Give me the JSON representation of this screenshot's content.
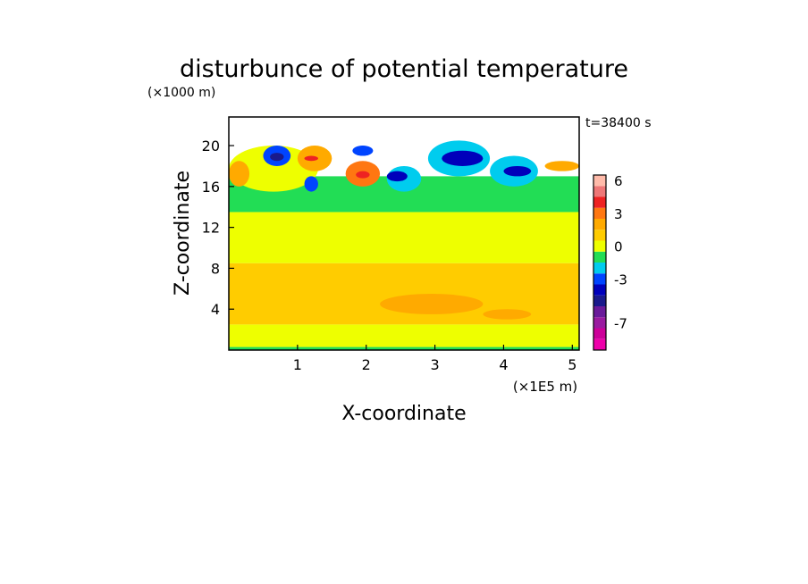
{
  "chart_data": {
    "type": "heatmap",
    "title": "disturbunce of potential temperature",
    "time_label": "t=38400 s",
    "xlabel": "X-coordinate",
    "ylabel": "Z-coordinate",
    "x_unit": "(×1E5 m)",
    "y_unit": "(×1000 m)",
    "x_ticks": [
      "1",
      "2",
      "3",
      "4",
      "5"
    ],
    "y_ticks": [
      "20",
      "16",
      "12",
      "8",
      "4"
    ],
    "xlim": [
      0,
      5.1
    ],
    "ylim": [
      0,
      22.8
    ],
    "colorbar": {
      "tick_labels": [
        "6",
        "3",
        "0",
        "-3",
        "-7"
      ],
      "levels": [
        {
          "min": -9,
          "max": -8,
          "color": "#ee00aa"
        },
        {
          "min": -8,
          "max": -7,
          "color": "#cc0099"
        },
        {
          "min": -7,
          "max": -6,
          "color": "#9a1aa0"
        },
        {
          "min": -6,
          "max": -5,
          "color": "#6a1a9a"
        },
        {
          "min": -5,
          "max": -4,
          "color": "#1a1a8c"
        },
        {
          "min": -4,
          "max": -3,
          "color": "#0000bb"
        },
        {
          "min": -3,
          "max": -2,
          "color": "#0044ff"
        },
        {
          "min": -2,
          "max": -1,
          "color": "#00ccee"
        },
        {
          "min": -1,
          "max": 0,
          "color": "#22dd55"
        },
        {
          "min": 0,
          "max": 1,
          "color": "#eeff00"
        },
        {
          "min": 1,
          "max": 2,
          "color": "#ffcc00"
        },
        {
          "min": 2,
          "max": 3,
          "color": "#ffaa00"
        },
        {
          "min": 3,
          "max": 4,
          "color": "#ff7711"
        },
        {
          "min": 4,
          "max": 5,
          "color": "#ee2222"
        },
        {
          "min": 5,
          "max": 6,
          "color": "#ee7777"
        },
        {
          "min": 6,
          "max": 7,
          "color": "#ffbbaa"
        }
      ]
    },
    "regions": [
      {
        "x0": 0.0,
        "x1": 5.1,
        "z0": 0.0,
        "z1": 0.3,
        "value": -0.5
      },
      {
        "x0": 0.0,
        "x1": 5.1,
        "z0": 0.3,
        "z1": 2.5,
        "value": 0.5
      },
      {
        "x0": 0.0,
        "x1": 5.1,
        "z0": 2.5,
        "z1": 8.5,
        "value": 1.5
      },
      {
        "x0": 0.3,
        "x1": 4.5,
        "z0": 3.0,
        "z1": 8.0,
        "value": 1.5
      },
      {
        "x0": 2.2,
        "x1": 3.7,
        "z0": 3.5,
        "z1": 5.5,
        "value": 2.5
      },
      {
        "x0": 3.7,
        "x1": 4.4,
        "z0": 3.0,
        "z1": 4.0,
        "value": 2.5
      },
      {
        "x0": 0.0,
        "x1": 5.1,
        "z0": 8.5,
        "z1": 13.5,
        "value": 0.5
      },
      {
        "x0": 0.0,
        "x1": 5.1,
        "z0": 13.5,
        "z1": 17.0,
        "value": -0.5
      },
      {
        "x0": 0.0,
        "x1": 1.3,
        "z0": 15.5,
        "z1": 20.0,
        "value": 0.5
      },
      {
        "x0": 0.0,
        "x1": 0.3,
        "z0": 16.0,
        "z1": 18.5,
        "value": 2.5
      },
      {
        "x0": 0.5,
        "x1": 0.9,
        "z0": 18.0,
        "z1": 20.0,
        "value": -2.5
      },
      {
        "x0": 0.6,
        "x1": 0.8,
        "z0": 18.5,
        "z1": 19.3,
        "value": -4.5
      },
      {
        "x0": 1.0,
        "x1": 1.5,
        "z0": 17.5,
        "z1": 20.0,
        "value": 2.5
      },
      {
        "x0": 1.1,
        "x1": 1.3,
        "z0": 18.5,
        "z1": 19.0,
        "value": 4.5
      },
      {
        "x0": 1.1,
        "x1": 1.3,
        "z0": 15.5,
        "z1": 17.0,
        "value": -2.5
      },
      {
        "x0": 1.7,
        "x1": 2.2,
        "z0": 16.0,
        "z1": 18.5,
        "value": 3.5
      },
      {
        "x0": 1.85,
        "x1": 2.05,
        "z0": 16.8,
        "z1": 17.5,
        "value": 4.5
      },
      {
        "x0": 1.8,
        "x1": 2.1,
        "z0": 19.0,
        "z1": 20.0,
        "value": -2.5
      },
      {
        "x0": 2.3,
        "x1": 2.8,
        "z0": 15.5,
        "z1": 18.0,
        "value": -1.5
      },
      {
        "x0": 2.3,
        "x1": 2.6,
        "z0": 16.5,
        "z1": 17.5,
        "value": -3.5
      },
      {
        "x0": 2.9,
        "x1": 3.8,
        "z0": 17.0,
        "z1": 20.5,
        "value": -1.5
      },
      {
        "x0": 3.1,
        "x1": 3.7,
        "z0": 18.0,
        "z1": 19.5,
        "value": -3.5
      },
      {
        "x0": 3.8,
        "x1": 4.5,
        "z0": 16.0,
        "z1": 19.0,
        "value": -1.5
      },
      {
        "x0": 4.0,
        "x1": 4.4,
        "z0": 17.0,
        "z1": 18.0,
        "value": -3.5
      },
      {
        "x0": 4.6,
        "x1": 5.1,
        "z0": 17.5,
        "z1": 18.5,
        "value": 2.5
      }
    ]
  }
}
